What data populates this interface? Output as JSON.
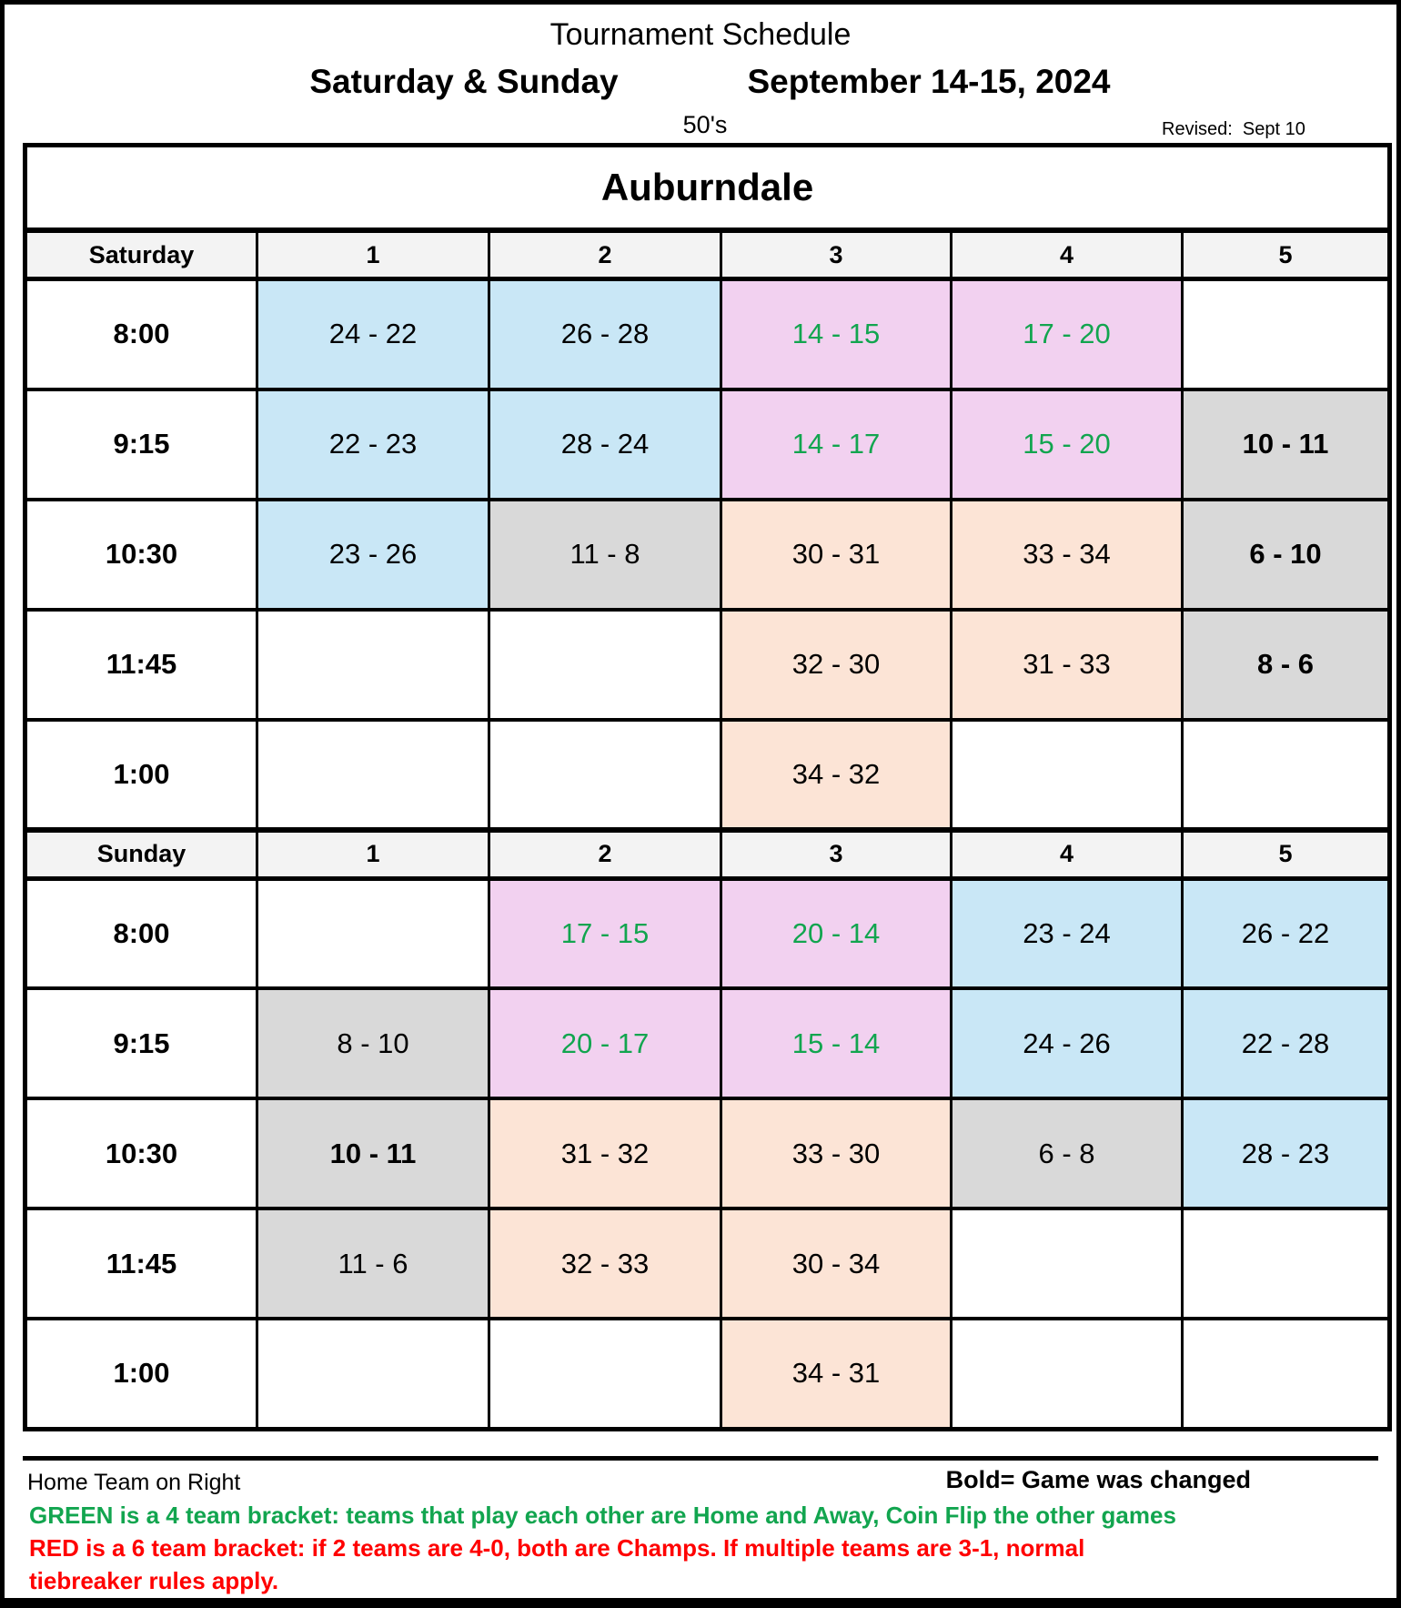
{
  "header": {
    "title": "Tournament Schedule",
    "days_label": "Saturday & Sunday",
    "date_label": "September 14-15, 2024",
    "division": "50's",
    "revised": "Revised:  Sept 10"
  },
  "colors": {
    "blue": "#C9E7F6",
    "pink": "#F2D1F0",
    "peach": "#FCE4D6",
    "gray": "#D9D9D9",
    "header_bg": "#F3F3F3",
    "green_text": "#12A54F",
    "red_text": "#FF0000",
    "border": "#000000"
  },
  "table": {
    "venue": "Auburndale",
    "columns": [
      "1",
      "2",
      "3",
      "4",
      "5"
    ],
    "sections": [
      {
        "day": "Saturday",
        "rows": [
          {
            "time": "8:00",
            "cells": [
              {
                "text": "24 - 22",
                "bg": "blue"
              },
              {
                "text": "26 - 28",
                "bg": "blue"
              },
              {
                "text": "14 - 15",
                "bg": "pink",
                "fg": "green"
              },
              {
                "text": "17 - 20",
                "bg": "pink",
                "fg": "green"
              },
              {
                "text": "",
                "bg": "white"
              }
            ]
          },
          {
            "time": "9:15",
            "cells": [
              {
                "text": "22 - 23",
                "bg": "blue"
              },
              {
                "text": "28 - 24",
                "bg": "blue"
              },
              {
                "text": "14 - 17",
                "bg": "pink",
                "fg": "green"
              },
              {
                "text": "15 - 20",
                "bg": "pink",
                "fg": "green"
              },
              {
                "text": "10 - 11",
                "bg": "gray",
                "bold": true
              }
            ]
          },
          {
            "time": "10:30",
            "cells": [
              {
                "text": "23 - 26",
                "bg": "blue"
              },
              {
                "text": "11 - 8",
                "bg": "gray"
              },
              {
                "text": "30 - 31",
                "bg": "peach"
              },
              {
                "text": "33 - 34",
                "bg": "peach"
              },
              {
                "text": "6 - 10",
                "bg": "gray",
                "bold": true
              }
            ]
          },
          {
            "time": "11:45",
            "cells": [
              {
                "text": "",
                "bg": "white"
              },
              {
                "text": "",
                "bg": "white"
              },
              {
                "text": "32 - 30",
                "bg": "peach"
              },
              {
                "text": "31 - 33",
                "bg": "peach"
              },
              {
                "text": "8 - 6",
                "bg": "gray",
                "bold": true
              }
            ]
          },
          {
            "time": "1:00",
            "cells": [
              {
                "text": "",
                "bg": "white"
              },
              {
                "text": "",
                "bg": "white"
              },
              {
                "text": "34 - 32",
                "bg": "peach"
              },
              {
                "text": "",
                "bg": "white"
              },
              {
                "text": "",
                "bg": "white"
              }
            ]
          }
        ]
      },
      {
        "day": "Sunday",
        "rows": [
          {
            "time": "8:00",
            "cells": [
              {
                "text": "",
                "bg": "white"
              },
              {
                "text": "17 - 15",
                "bg": "pink",
                "fg": "green"
              },
              {
                "text": "20 - 14",
                "bg": "pink",
                "fg": "green"
              },
              {
                "text": "23 - 24",
                "bg": "blue"
              },
              {
                "text": "26 - 22",
                "bg": "blue"
              }
            ]
          },
          {
            "time": "9:15",
            "cells": [
              {
                "text": "8 - 10",
                "bg": "gray"
              },
              {
                "text": "20 - 17",
                "bg": "pink",
                "fg": "green"
              },
              {
                "text": "15 - 14",
                "bg": "pink",
                "fg": "green"
              },
              {
                "text": "24 - 26",
                "bg": "blue"
              },
              {
                "text": "22 - 28",
                "bg": "blue"
              }
            ]
          },
          {
            "time": "10:30",
            "cells": [
              {
                "text": "10 - 11",
                "bg": "gray",
                "bold": true
              },
              {
                "text": "31 - 32",
                "bg": "peach"
              },
              {
                "text": "33 - 30",
                "bg": "peach"
              },
              {
                "text": "6 - 8",
                "bg": "gray"
              },
              {
                "text": "28 - 23",
                "bg": "blue"
              }
            ]
          },
          {
            "time": "11:45",
            "cells": [
              {
                "text": "11 - 6",
                "bg": "gray"
              },
              {
                "text": "32 - 33",
                "bg": "peach"
              },
              {
                "text": "30 - 34",
                "bg": "peach"
              },
              {
                "text": "",
                "bg": "white"
              },
              {
                "text": "",
                "bg": "white"
              }
            ]
          },
          {
            "time": "1:00",
            "cells": [
              {
                "text": "",
                "bg": "white"
              },
              {
                "text": "",
                "bg": "white"
              },
              {
                "text": "34 - 31",
                "bg": "peach"
              },
              {
                "text": "",
                "bg": "white"
              },
              {
                "text": "",
                "bg": "white"
              }
            ]
          }
        ]
      }
    ]
  },
  "footer": {
    "home_team_note": "Home Team on Right",
    "bold_note": "Bold= Game was changed",
    "green_note": "GREEN is a 4 team bracket: teams that play each other are Home and Away, Coin Flip the other games",
    "red_note_line1": "RED is a 6 team bracket: if 2 teams are 4-0, both are Champs. If multiple teams are 3-1, normal",
    "red_note_line2": "tiebreaker rules apply."
  }
}
